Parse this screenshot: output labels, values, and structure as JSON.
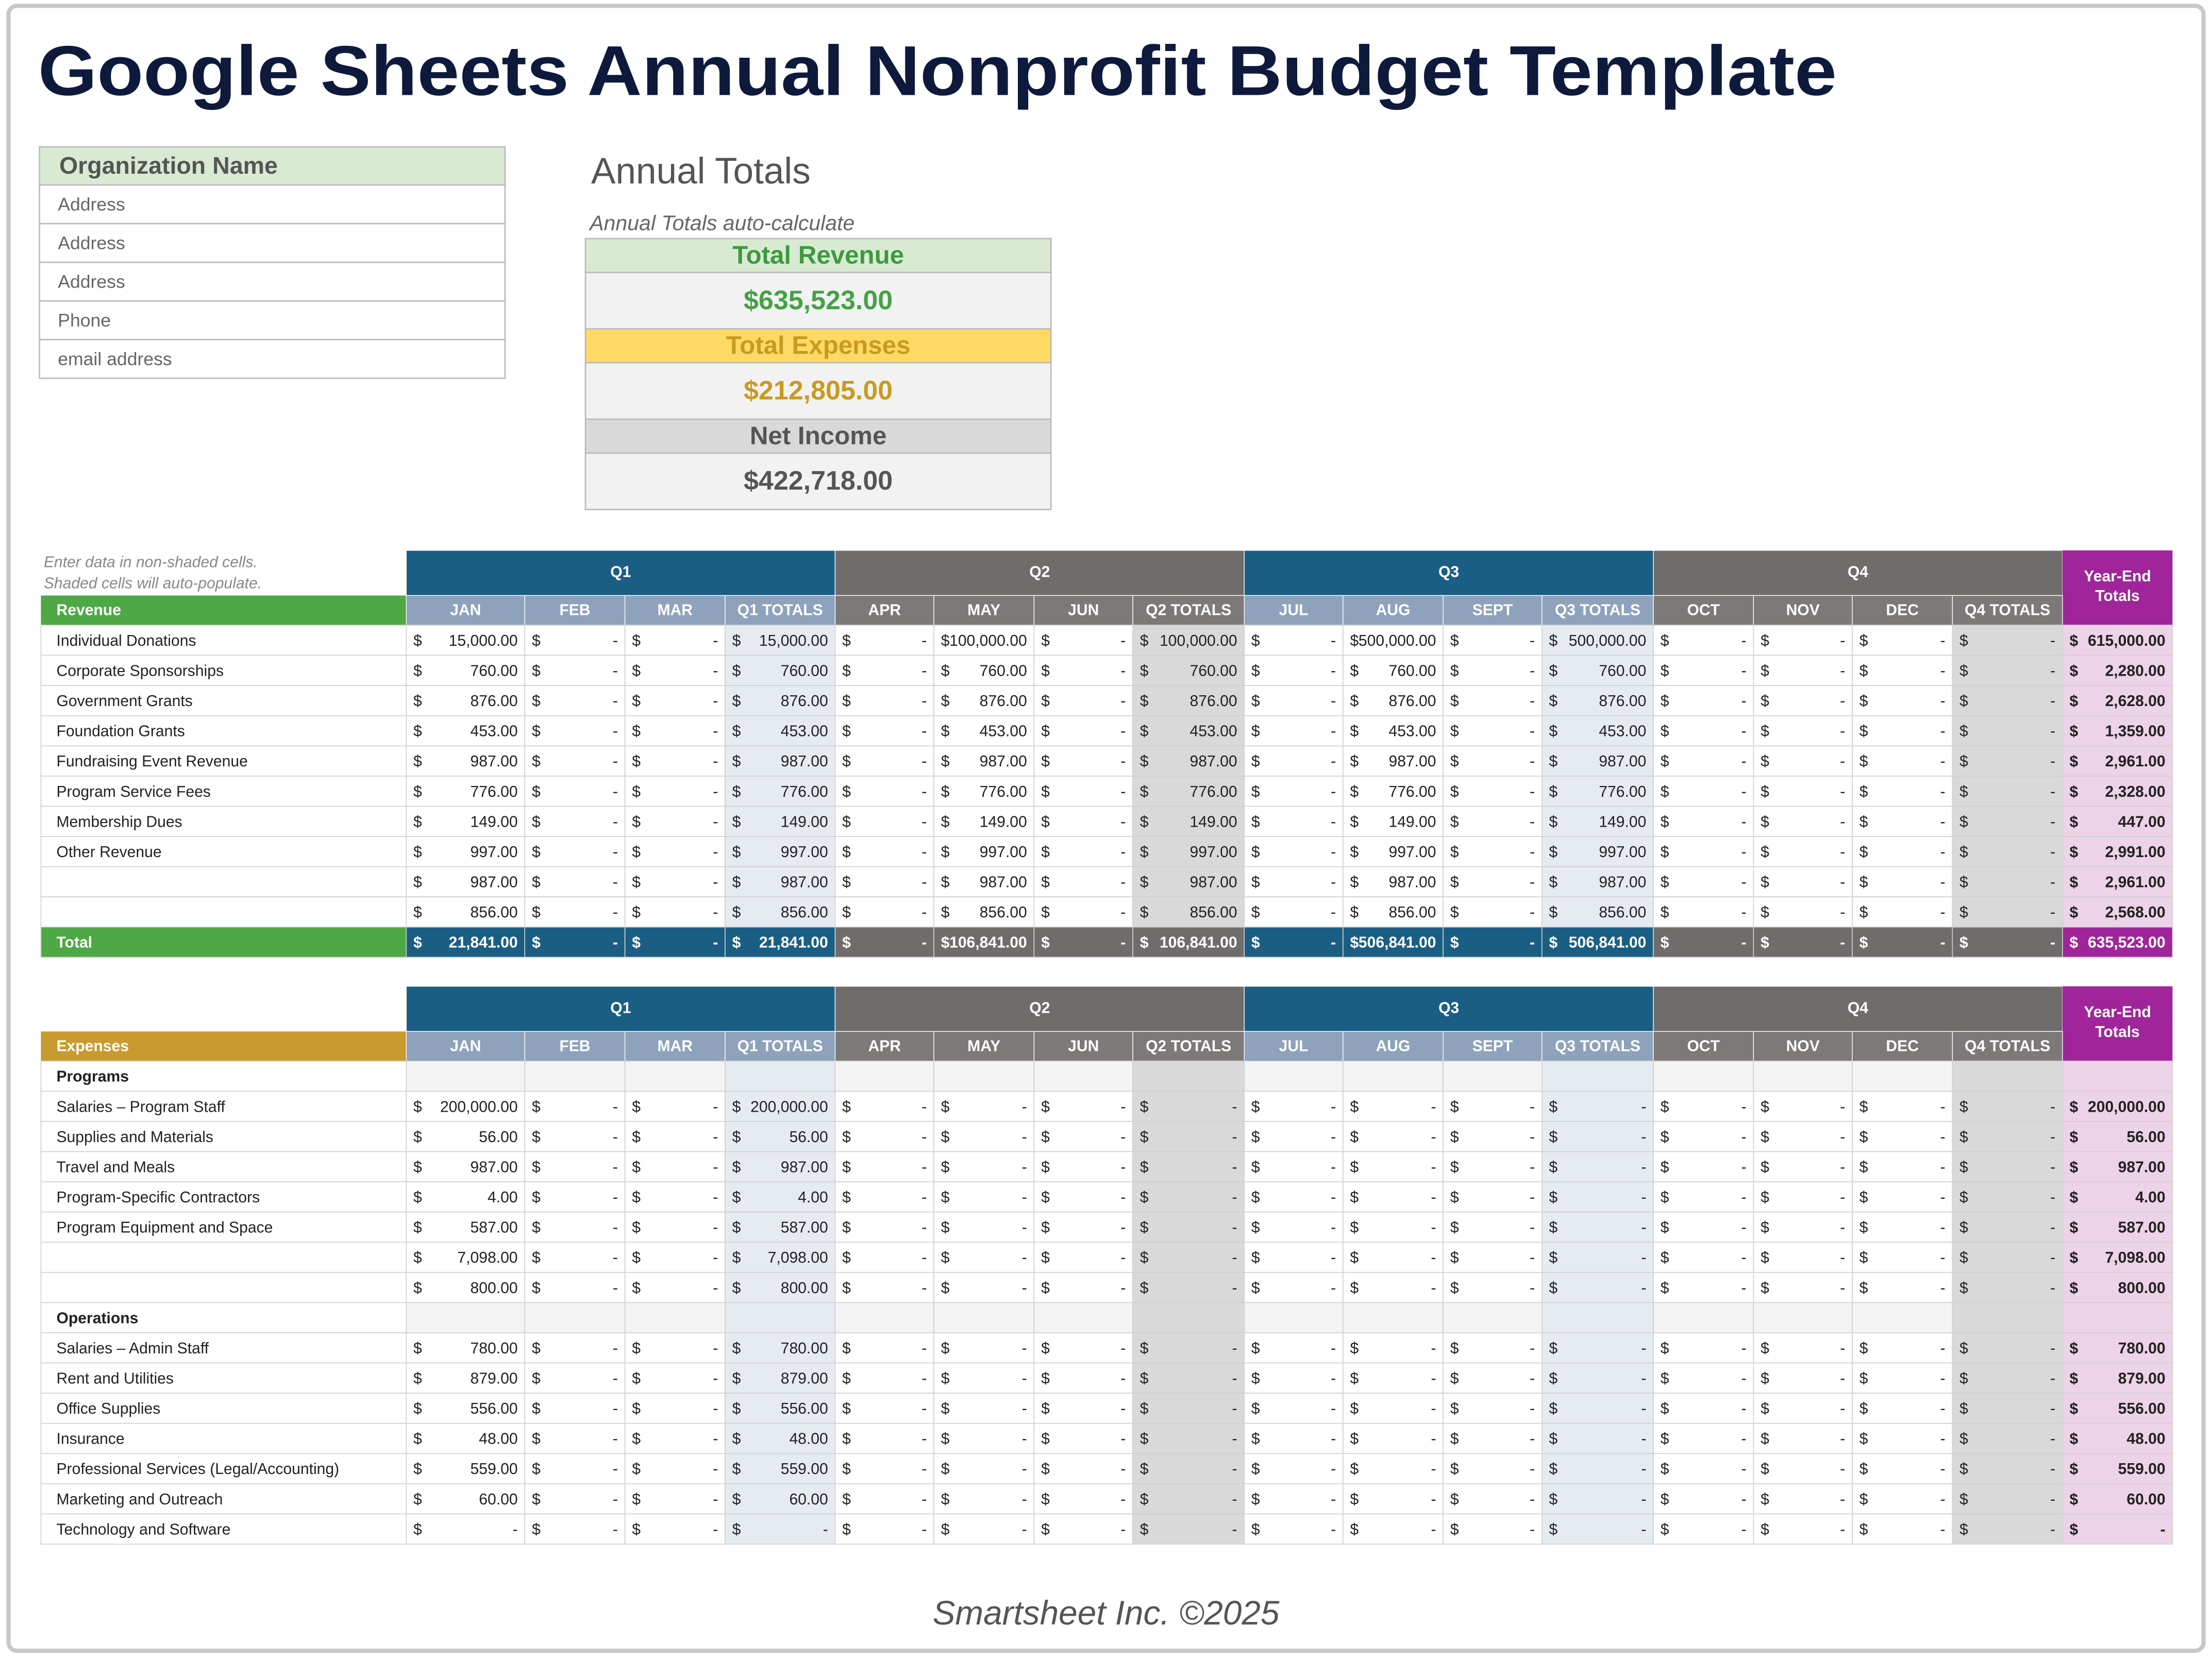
{
  "header": {
    "title": "Google Sheets Annual Nonprofit Budget Template"
  },
  "organization": [
    "Organization Name",
    "Address",
    "Address",
    "Address",
    "Phone",
    "email address"
  ],
  "annual_totals": {
    "title": "Annual Totals",
    "note": "Annual Totals auto-calculate",
    "items": [
      {
        "label": "Total Revenue",
        "value": "$635,523.00"
      },
      {
        "label": "Total Expenses",
        "value": "$212,805.00"
      },
      {
        "label": "Net Income",
        "value": "$422,718.00"
      }
    ]
  },
  "instructions": [
    "Enter data in non-shaded cells.",
    "Shaded cells will auto-populate."
  ],
  "currency": "$",
  "quarters": [
    "Q1",
    "Q2",
    "Q3",
    "Q4"
  ],
  "year_end": [
    "Year-End",
    "Totals"
  ],
  "columns": [
    "JAN",
    "FEB",
    "MAR",
    "Q1 TOTALS",
    "APR",
    "MAY",
    "JUN",
    "Q2 TOTALS",
    "JUL",
    "AUG",
    "SEPT",
    "Q3 TOTALS",
    "OCT",
    "NOV",
    "DEC",
    "Q4 TOTALS"
  ],
  "revenue": {
    "label": "Revenue",
    "rows": [
      {
        "name": "Individual Donations",
        "cells": [
          "15,000.00",
          "-",
          "-",
          "15,000.00",
          "-",
          "100,000.00",
          "-",
          "100,000.00",
          "-",
          "500,000.00",
          "-",
          "500,000.00",
          "-",
          "-",
          "-",
          "-"
        ],
        "total": "615,000.00"
      },
      {
        "name": "Corporate Sponsorships",
        "cells": [
          "760.00",
          "-",
          "-",
          "760.00",
          "-",
          "760.00",
          "-",
          "760.00",
          "-",
          "760.00",
          "-",
          "760.00",
          "-",
          "-",
          "-",
          "-"
        ],
        "total": "2,280.00"
      },
      {
        "name": "Government Grants",
        "cells": [
          "876.00",
          "-",
          "-",
          "876.00",
          "-",
          "876.00",
          "-",
          "876.00",
          "-",
          "876.00",
          "-",
          "876.00",
          "-",
          "-",
          "-",
          "-"
        ],
        "total": "2,628.00"
      },
      {
        "name": "Foundation Grants",
        "cells": [
          "453.00",
          "-",
          "-",
          "453.00",
          "-",
          "453.00",
          "-",
          "453.00",
          "-",
          "453.00",
          "-",
          "453.00",
          "-",
          "-",
          "-",
          "-"
        ],
        "total": "1,359.00"
      },
      {
        "name": "Fundraising Event Revenue",
        "cells": [
          "987.00",
          "-",
          "-",
          "987.00",
          "-",
          "987.00",
          "-",
          "987.00",
          "-",
          "987.00",
          "-",
          "987.00",
          "-",
          "-",
          "-",
          "-"
        ],
        "total": "2,961.00"
      },
      {
        "name": "Program Service Fees",
        "cells": [
          "776.00",
          "-",
          "-",
          "776.00",
          "-",
          "776.00",
          "-",
          "776.00",
          "-",
          "776.00",
          "-",
          "776.00",
          "-",
          "-",
          "-",
          "-"
        ],
        "total": "2,328.00"
      },
      {
        "name": "Membership Dues",
        "cells": [
          "149.00",
          "-",
          "-",
          "149.00",
          "-",
          "149.00",
          "-",
          "149.00",
          "-",
          "149.00",
          "-",
          "149.00",
          "-",
          "-",
          "-",
          "-"
        ],
        "total": "447.00"
      },
      {
        "name": "Other Revenue",
        "cells": [
          "997.00",
          "-",
          "-",
          "997.00",
          "-",
          "997.00",
          "-",
          "997.00",
          "-",
          "997.00",
          "-",
          "997.00",
          "-",
          "-",
          "-",
          "-"
        ],
        "total": "2,991.00"
      },
      {
        "name": null,
        "cells": [
          "987.00",
          "-",
          "-",
          "987.00",
          "-",
          "987.00",
          "-",
          "987.00",
          "-",
          "987.00",
          "-",
          "987.00",
          "-",
          "-",
          "-",
          "-"
        ],
        "total": "2,961.00"
      },
      {
        "name": null,
        "cells": [
          "856.00",
          "-",
          "-",
          "856.00",
          "-",
          "856.00",
          "-",
          "856.00",
          "-",
          "856.00",
          "-",
          "856.00",
          "-",
          "-",
          "-",
          "-"
        ],
        "total": "2,568.00"
      }
    ],
    "total_row": {
      "name": "Total",
      "cells": [
        "21,841.00",
        "-",
        "-",
        "21,841.00",
        "-",
        "106,841.00",
        "-",
        "106,841.00",
        "-",
        "506,841.00",
        "-",
        "506,841.00",
        "-",
        "-",
        "-",
        "-"
      ],
      "total": "635,523.00"
    }
  },
  "expenses": {
    "label": "Expenses",
    "sections": [
      {
        "name": "Programs",
        "rows": [
          {
            "name": "Salaries – Program Staff",
            "cells": [
              "200,000.00",
              "-",
              "-",
              "200,000.00",
              "-",
              "-",
              "-",
              "-",
              "-",
              "-",
              "-",
              "-",
              "-",
              "-",
              "-",
              "-"
            ],
            "total": "200,000.00"
          },
          {
            "name": "Supplies and Materials",
            "cells": [
              "56.00",
              "-",
              "-",
              "56.00",
              "-",
              "-",
              "-",
              "-",
              "-",
              "-",
              "-",
              "-",
              "-",
              "-",
              "-",
              "-"
            ],
            "total": "56.00"
          },
          {
            "name": "Travel and Meals",
            "cells": [
              "987.00",
              "-",
              "-",
              "987.00",
              "-",
              "-",
              "-",
              "-",
              "-",
              "-",
              "-",
              "-",
              "-",
              "-",
              "-",
              "-"
            ],
            "total": "987.00"
          },
          {
            "name": "Program-Specific Contractors",
            "cells": [
              "4.00",
              "-",
              "-",
              "4.00",
              "-",
              "-",
              "-",
              "-",
              "-",
              "-",
              "-",
              "-",
              "-",
              "-",
              "-",
              "-"
            ],
            "total": "4.00"
          },
          {
            "name": "Program Equipment and Space",
            "cells": [
              "587.00",
              "-",
              "-",
              "587.00",
              "-",
              "-",
              "-",
              "-",
              "-",
              "-",
              "-",
              "-",
              "-",
              "-",
              "-",
              "-"
            ],
            "total": "587.00"
          },
          {
            "name": null,
            "cells": [
              "7,098.00",
              "-",
              "-",
              "7,098.00",
              "-",
              "-",
              "-",
              "-",
              "-",
              "-",
              "-",
              "-",
              "-",
              "-",
              "-",
              "-"
            ],
            "total": "7,098.00"
          },
          {
            "name": null,
            "cells": [
              "800.00",
              "-",
              "-",
              "800.00",
              "-",
              "-",
              "-",
              "-",
              "-",
              "-",
              "-",
              "-",
              "-",
              "-",
              "-",
              "-"
            ],
            "total": "800.00"
          }
        ]
      },
      {
        "name": "Operations",
        "rows": [
          {
            "name": "Salaries – Admin Staff",
            "cells": [
              "780.00",
              "-",
              "-",
              "780.00",
              "-",
              "-",
              "-",
              "-",
              "-",
              "-",
              "-",
              "-",
              "-",
              "-",
              "-",
              "-"
            ],
            "total": "780.00"
          },
          {
            "name": "Rent and Utilities",
            "cells": [
              "879.00",
              "-",
              "-",
              "879.00",
              "-",
              "-",
              "-",
              "-",
              "-",
              "-",
              "-",
              "-",
              "-",
              "-",
              "-",
              "-"
            ],
            "total": "879.00"
          },
          {
            "name": "Office Supplies",
            "cells": [
              "556.00",
              "-",
              "-",
              "556.00",
              "-",
              "-",
              "-",
              "-",
              "-",
              "-",
              "-",
              "-",
              "-",
              "-",
              "-",
              "-"
            ],
            "total": "556.00"
          },
          {
            "name": "Insurance",
            "cells": [
              "48.00",
              "-",
              "-",
              "48.00",
              "-",
              "-",
              "-",
              "-",
              "-",
              "-",
              "-",
              "-",
              "-",
              "-",
              "-",
              "-"
            ],
            "total": "48.00"
          },
          {
            "name": "Professional Services (Legal/Accounting)",
            "cells": [
              "559.00",
              "-",
              "-",
              "559.00",
              "-",
              "-",
              "-",
              "-",
              "-",
              "-",
              "-",
              "-",
              "-",
              "-",
              "-",
              "-"
            ],
            "total": "559.00"
          },
          {
            "name": "Marketing and Outreach",
            "cells": [
              "60.00",
              "-",
              "-",
              "60.00",
              "-",
              "-",
              "-",
              "-",
              "-",
              "-",
              "-",
              "-",
              "-",
              "-",
              "-",
              "-"
            ],
            "total": "60.00"
          },
          {
            "name": "Technology and Software",
            "cells": [
              "-",
              "-",
              "-",
              "-",
              "-",
              "-",
              "-",
              "-",
              "-",
              "-",
              "-",
              "-",
              "-",
              "-",
              "-",
              "-"
            ],
            "total": "-"
          }
        ]
      }
    ]
  },
  "footer": "Smartsheet Inc. ©2025"
}
